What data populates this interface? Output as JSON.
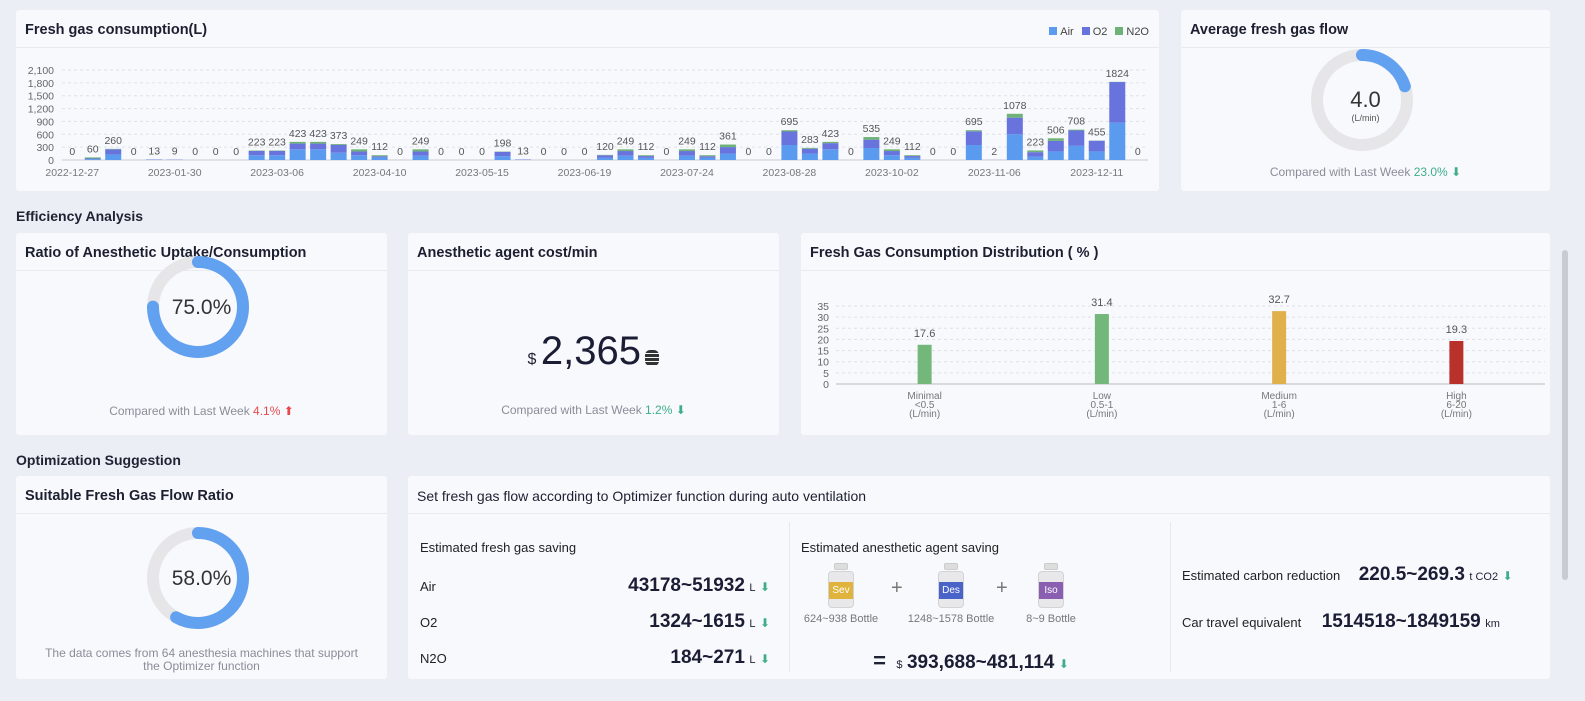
{
  "colors": {
    "air": "#5b9bef",
    "o2": "#6873dd",
    "n2o": "#6fb277",
    "ring": "#e6e6e8",
    "accent": "#62a0f0",
    "minimal": "#74b77b",
    "low": "#74b77b",
    "medium": "#e0b04d",
    "high": "#b8312a",
    "down": "#3fae86",
    "up": "#e54b4b"
  },
  "consumption": {
    "title": "Fresh gas consumption(L)",
    "legend": [
      "Air",
      "O2",
      "N2O"
    ]
  },
  "avg_flow": {
    "title": "Average fresh gas flow",
    "value": "4.0",
    "unit": "(L/min)",
    "progress": 0.2,
    "compare_label": "Compared with Last Week",
    "compare_value": "23.0%",
    "trend": "down",
    "arrow": "⬇"
  },
  "sections": {
    "efficiency": "Efficiency Analysis",
    "optimization": "Optimization Suggestion"
  },
  "ratio": {
    "title": "Ratio of Anesthetic Uptake/Consumption",
    "value": "75.0%",
    "progress": 0.75,
    "compare_label": "Compared with Last Week",
    "compare_value": "4.1%",
    "trend": "up",
    "arrow": "⬆"
  },
  "cost": {
    "title": "Anesthetic agent cost/min",
    "currency": "$",
    "value": "2,365",
    "icon": "coins-icon",
    "compare_label": "Compared with Last Week",
    "compare_value": "1.2%",
    "trend": "down",
    "arrow": "⬇"
  },
  "suitable": {
    "title": "Suitable Fresh Gas Flow Ratio",
    "value": "58.0%",
    "progress": 0.58,
    "note": "The data comes from 64 anesthesia machines that support the Optimizer function"
  },
  "optimizer": {
    "title": "Set fresh gas flow according to Optimizer function during auto ventilation",
    "gas_saving": {
      "title": "Estimated fresh gas saving",
      "rows": [
        {
          "name": "Air",
          "value": "43178~51932",
          "unit": "L"
        },
        {
          "name": "O2",
          "value": "1324~1615",
          "unit": "L"
        },
        {
          "name": "N2O",
          "value": "184~271",
          "unit": "L"
        }
      ]
    },
    "agent_saving": {
      "title": "Estimated anesthetic agent saving",
      "bottles": [
        {
          "name": "Sev",
          "qty": "624~938 Bottle",
          "color": "#e0b43c"
        },
        {
          "name": "Des",
          "qty": "1248~1578 Bottle",
          "color": "#4a63c8"
        },
        {
          "name": "Iso",
          "qty": "8~9 Bottle",
          "color": "#8a5eb0"
        }
      ],
      "plus": "+",
      "equals": "=",
      "currency": "$",
      "total": "393,688~481,114"
    },
    "carbon": {
      "label": "Estimated carbon reduction",
      "value": "220.5~269.3",
      "unit": "t CO2"
    },
    "car": {
      "label": "Car travel equivalent",
      "value": "1514518~1849159",
      "unit": "km"
    }
  },
  "chart_data": [
    {
      "type": "bar",
      "stacked": true,
      "title": "Fresh gas consumption(L)",
      "ylim": [
        0,
        2100
      ],
      "yticks": [
        "0",
        "300",
        "600",
        "900",
        "1,200",
        "1,500",
        "1,800",
        "2,100"
      ],
      "grid": true,
      "legend": "top-right",
      "xtick_labels": [
        "2022-12-27",
        "2023-01-30",
        "2023-03-06",
        "2023-04-10",
        "2023-05-15",
        "2023-06-19",
        "2023-07-24",
        "2023-08-28",
        "2023-10-02",
        "2023-11-06",
        "2023-12-11"
      ],
      "totals": [
        0,
        60,
        260,
        0,
        13,
        9,
        0,
        0,
        0,
        223,
        223,
        423,
        423,
        373,
        249,
        112,
        0,
        249,
        0,
        0,
        0,
        198,
        13,
        0,
        0,
        0,
        120,
        249,
        112,
        0,
        249,
        112,
        361,
        0,
        0,
        695,
        283,
        423,
        0,
        535,
        249,
        112,
        0,
        0,
        695,
        2,
        1078,
        223,
        506,
        708,
        455,
        1824,
        0
      ],
      "series": [
        {
          "name": "Air",
          "values": [
            0,
            20,
            130,
            0,
            6,
            4,
            0,
            0,
            0,
            110,
            110,
            250,
            250,
            170,
            110,
            60,
            0,
            100,
            0,
            0,
            0,
            90,
            6,
            0,
            0,
            0,
            50,
            100,
            50,
            0,
            100,
            50,
            150,
            0,
            0,
            350,
            150,
            250,
            0,
            280,
            110,
            50,
            0,
            0,
            350,
            1,
            600,
            80,
            200,
            330,
            200,
            870,
            0
          ]
        },
        {
          "name": "O2",
          "values": [
            0,
            15,
            120,
            0,
            7,
            5,
            0,
            0,
            0,
            103,
            103,
            133,
            133,
            183,
            89,
            27,
            0,
            99,
            0,
            0,
            0,
            100,
            7,
            0,
            0,
            0,
            60,
            109,
            42,
            0,
            109,
            37,
            151,
            0,
            0,
            315,
            113,
            143,
            0,
            195,
            99,
            42,
            0,
            0,
            320,
            1,
            388,
            103,
            246,
            358,
            250,
            949,
            0
          ]
        },
        {
          "name": "N2O",
          "values": [
            0,
            25,
            10,
            0,
            0,
            0,
            0,
            0,
            0,
            10,
            10,
            40,
            40,
            20,
            50,
            25,
            0,
            50,
            0,
            0,
            0,
            8,
            0,
            0,
            0,
            0,
            10,
            40,
            20,
            0,
            40,
            25,
            60,
            0,
            0,
            30,
            20,
            30,
            0,
            60,
            40,
            20,
            0,
            0,
            25,
            0,
            90,
            40,
            60,
            20,
            5,
            5,
            0
          ]
        }
      ]
    },
    {
      "type": "bar",
      "title": "Fresh Gas Consumption Distribution ( % )",
      "ylim": [
        0,
        35
      ],
      "yticks": [
        "0",
        "5",
        "10",
        "15",
        "20",
        "25",
        "30",
        "35"
      ],
      "grid": true,
      "categories": [
        [
          "Minimal",
          "<0.5",
          "(L/min)"
        ],
        [
          "Low",
          "0.5-1",
          "(L/min)"
        ],
        [
          "Medium",
          "1-6",
          "(L/min)"
        ],
        [
          "High",
          "6-20",
          "(L/min)"
        ]
      ],
      "values": [
        17.6,
        31.4,
        32.7,
        19.3
      ],
      "labels": [
        "17.6",
        "31.4",
        "32.7",
        "19.3"
      ],
      "bar_colors": [
        "minimal",
        "low",
        "medium",
        "high"
      ]
    }
  ]
}
